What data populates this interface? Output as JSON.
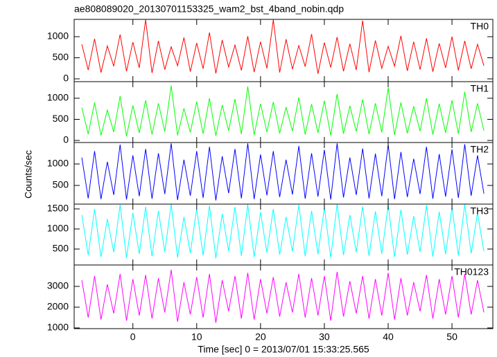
{
  "chart_data": {
    "type": "line",
    "title": "ae808089020_20130701153325_wam2_bst_4band_nobin.qdp",
    "xlabel": "Time [sec] 0 = 2013/07/01 15:33:25.565",
    "ylabel": "Counts/sec",
    "xlim": [
      -9.2,
      56.4
    ],
    "xticks": [
      0,
      10,
      20,
      30,
      40,
      50
    ],
    "x": [
      -8,
      -7,
      -6,
      -5,
      -4,
      -3,
      -2,
      -1,
      0,
      1,
      2,
      3,
      4,
      5,
      6,
      7,
      8,
      9,
      10,
      11,
      12,
      13,
      14,
      15,
      16,
      17,
      18,
      19,
      20,
      21,
      22,
      23,
      24,
      25,
      26,
      27,
      28,
      29,
      30,
      31,
      32,
      33,
      34,
      35,
      36,
      37,
      38,
      39,
      40,
      41,
      42,
      43,
      44,
      45,
      46,
      47,
      48,
      49,
      50,
      51,
      52,
      53,
      54,
      55
    ],
    "series": [
      {
        "name": "TH0",
        "color": "#ff0000",
        "ylim": [
          -66,
          1410
        ],
        "yticks": [
          0,
          500,
          1000
        ],
        "values": [
          820,
          210,
          950,
          150,
          780,
          300,
          1050,
          180,
          870,
          260,
          1400,
          140,
          900,
          220,
          760,
          310,
          980,
          170,
          850,
          240,
          1100,
          130,
          920,
          280,
          800,
          200,
          1010,
          160,
          880,
          250,
          1400,
          150,
          940,
          230,
          790,
          290,
          1060,
          120,
          860,
          270,
          990,
          180,
          830,
          210,
          1380,
          160,
          910,
          250,
          770,
          300,
          1020,
          190,
          880,
          220,
          960,
          170,
          840,
          260,
          1000,
          200,
          900,
          240,
          820,
          310
        ]
      },
      {
        "name": "TH1",
        "color": "#00ff00",
        "ylim": [
          -49,
          1393
        ],
        "yticks": [
          0,
          500,
          1000
        ],
        "values": [
          780,
          150,
          900,
          120,
          720,
          200,
          1050,
          100,
          830,
          180,
          950,
          140,
          880,
          210,
          1300,
          120,
          760,
          190,
          920,
          160,
          1000,
          110,
          840,
          230,
          980,
          150,
          1280,
          130,
          870,
          200,
          910,
          170,
          790,
          220,
          1020,
          140,
          860,
          180,
          940,
          120,
          1100,
          160,
          820,
          210,
          970,
          150,
          880,
          190,
          1250,
          130,
          900,
          170,
          810,
          220,
          1000,
          140,
          870,
          180,
          950,
          160,
          1150,
          200,
          880,
          230
        ]
      },
      {
        "name": "TH2",
        "color": "#0000ff",
        "ylim": [
          65,
          1500
        ],
        "yticks": [
          500,
          1000
        ],
        "values": [
          1150,
          200,
          1300,
          180,
          1050,
          280,
          1450,
          170,
          1200,
          250,
          1350,
          190,
          1250,
          300,
          1480,
          160,
          1100,
          260,
          1300,
          210,
          1400,
          150,
          1180,
          320,
          1350,
          200,
          1480,
          180,
          1220,
          270,
          1300,
          230,
          1100,
          290,
          1420,
          190,
          1250,
          240,
          1330,
          170,
          1480,
          220,
          1150,
          280,
          1360,
          200,
          1240,
          250,
          1450,
          180,
          1280,
          230,
          1120,
          300,
          1400,
          190,
          1230,
          240,
          1340,
          210,
          1460,
          260,
          1200,
          310
        ]
      },
      {
        "name": "TH3",
        "color": "#00ffff",
        "ylim": [
          103,
          1620
        ],
        "yticks": [
          500,
          1000,
          1500
        ],
        "values": [
          1350,
          350,
          1500,
          300,
          1250,
          420,
          1600,
          280,
          1400,
          380,
          1550,
          320,
          1450,
          430,
          1620,
          290,
          1300,
          400,
          1500,
          340,
          1580,
          270,
          1380,
          450,
          1550,
          330,
          1610,
          300,
          1420,
          410,
          1500,
          360,
          1300,
          440,
          1600,
          320,
          1450,
          370,
          1530,
          290,
          1620,
          350,
          1350,
          420,
          1560,
          330,
          1440,
          380,
          1600,
          300,
          1480,
          360,
          1320,
          430,
          1590,
          310,
          1430,
          370,
          1540,
          340,
          1610,
          390,
          1400,
          440
        ]
      },
      {
        "name": "TH0123",
        "color": "#ff00ff",
        "ylim": [
          967,
          4030
        ],
        "yticks": [
          1000,
          2000,
          3000
        ],
        "values": [
          3300,
          1500,
          3500,
          1400,
          3100,
          1700,
          3600,
          1350,
          3350,
          1600,
          3550,
          1450,
          3400,
          1750,
          3800,
          1300,
          3200,
          1650,
          3450,
          1500,
          3600,
          1250,
          3300,
          1800,
          3500,
          1450,
          3650,
          1400,
          3350,
          1700,
          3450,
          1550,
          3200,
          1750,
          3600,
          1500,
          3400,
          1600,
          3500,
          1350,
          3700,
          1550,
          3250,
          1700,
          3500,
          1450,
          3350,
          1600,
          3650,
          1400,
          3400,
          1600,
          3200,
          1800,
          3550,
          1450,
          3350,
          1650,
          3500,
          1500,
          3600,
          1650,
          3300,
          1750
        ]
      }
    ]
  }
}
